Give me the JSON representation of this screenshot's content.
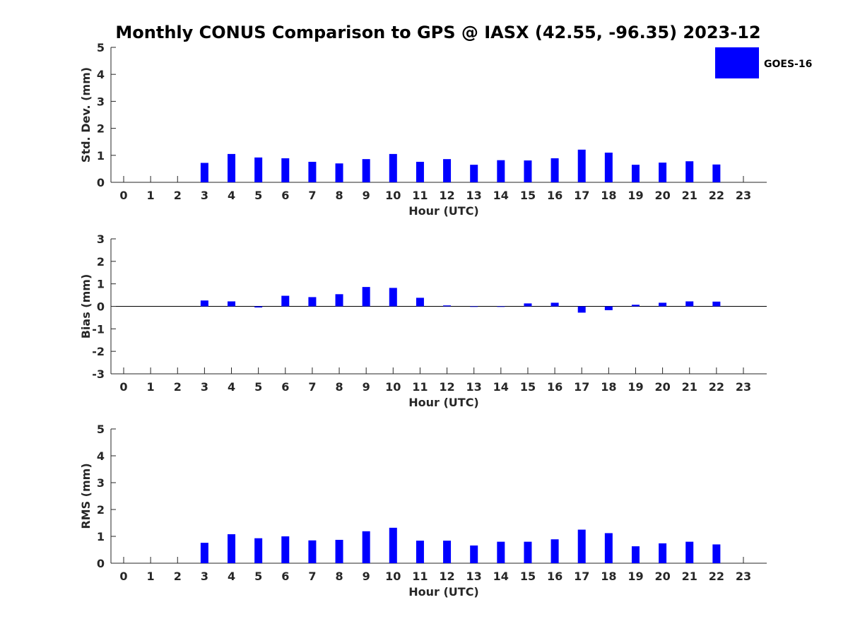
{
  "figure": {
    "title": "Monthly CONUS Comparison to GPS @ IASX (42.55, -96.35) 2023-12"
  },
  "legend": {
    "label": "GOES-16",
    "color": "#0000ff",
    "placement": "top-right"
  },
  "chart_data": [
    {
      "type": "bar",
      "xlabel": "Hour (UTC)",
      "ylabel": "Std. Dev. (mm)",
      "ylim": [
        0,
        5
      ],
      "yticks": [
        "0",
        "1",
        "2",
        "3",
        "4",
        "5"
      ],
      "categories": [
        "0",
        "1",
        "2",
        "3",
        "4",
        "5",
        "6",
        "7",
        "8",
        "9",
        "10",
        "11",
        "12",
        "13",
        "14",
        "15",
        "16",
        "17",
        "18",
        "19",
        "20",
        "21",
        "22",
        "23"
      ],
      "series": [
        {
          "name": "GOES-16",
          "color": "#0000ff",
          "values": [
            null,
            null,
            null,
            0.72,
            1.05,
            0.92,
            0.89,
            0.76,
            0.7,
            0.86,
            1.05,
            0.76,
            0.86,
            0.65,
            0.82,
            0.81,
            0.89,
            1.21,
            1.1,
            0.65,
            0.73,
            0.78,
            0.66,
            null
          ]
        }
      ]
    },
    {
      "type": "bar",
      "xlabel": "Hour (UTC)",
      "ylabel": "Bias (mm)",
      "ylim": [
        -3,
        3
      ],
      "yticks": [
        "-3",
        "-2",
        "-1",
        "0",
        "1",
        "2",
        "3"
      ],
      "categories": [
        "0",
        "1",
        "2",
        "3",
        "4",
        "5",
        "6",
        "7",
        "8",
        "9",
        "10",
        "11",
        "12",
        "13",
        "14",
        "15",
        "16",
        "17",
        "18",
        "19",
        "20",
        "21",
        "22",
        "23"
      ],
      "series": [
        {
          "name": "GOES-16",
          "color": "#0000ff",
          "values": [
            null,
            null,
            null,
            0.26,
            0.22,
            -0.05,
            0.47,
            0.41,
            0.54,
            0.86,
            0.82,
            0.38,
            0.04,
            0.0,
            0.0,
            0.13,
            0.16,
            -0.28,
            -0.17,
            0.07,
            0.16,
            0.22,
            0.21,
            null
          ]
        }
      ]
    },
    {
      "type": "bar",
      "xlabel": "Hour (UTC)",
      "ylabel": "RMS (mm)",
      "ylim": [
        0,
        5
      ],
      "yticks": [
        "0",
        "1",
        "2",
        "3",
        "4",
        "5"
      ],
      "categories": [
        "0",
        "1",
        "2",
        "3",
        "4",
        "5",
        "6",
        "7",
        "8",
        "9",
        "10",
        "11",
        "12",
        "13",
        "14",
        "15",
        "16",
        "17",
        "18",
        "19",
        "20",
        "21",
        "22",
        "23"
      ],
      "series": [
        {
          "name": "GOES-16",
          "color": "#0000ff",
          "values": [
            null,
            null,
            null,
            0.76,
            1.08,
            0.93,
            1.0,
            0.85,
            0.87,
            1.19,
            1.32,
            0.84,
            0.84,
            0.66,
            0.8,
            0.8,
            0.89,
            1.25,
            1.12,
            0.63,
            0.74,
            0.8,
            0.7,
            null
          ]
        }
      ]
    }
  ]
}
